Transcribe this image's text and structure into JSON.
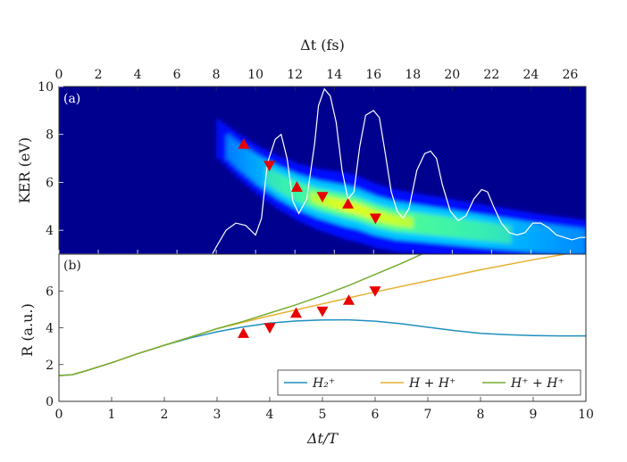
{
  "chart_data": [
    {
      "panel": "(a)",
      "type": "heatmap",
      "top_axis": {
        "label_text": "Δt (fs)",
        "range": [
          0,
          26.8
        ],
        "ticks": [
          "0",
          "2",
          "4",
          "6",
          "8",
          "10",
          "12",
          "14",
          "16",
          "18",
          "20",
          "22",
          "24",
          "26"
        ]
      },
      "y_axis": {
        "label_text": "KER (eV)",
        "range": [
          3,
          10
        ],
        "ticks": [
          "4",
          "6",
          "8",
          "10"
        ]
      },
      "heatmap": {
        "description_key": "ker_yield",
        "band_points": [
          [
            8,
            7.8
          ],
          [
            9,
            7.1
          ],
          [
            10,
            6.5
          ],
          [
            11,
            6.0
          ],
          [
            12,
            5.6
          ],
          [
            13,
            5.3
          ],
          [
            14,
            5.1
          ],
          [
            15,
            4.9
          ],
          [
            16,
            4.6
          ],
          [
            17,
            4.4
          ],
          [
            18,
            4.3
          ],
          [
            20,
            4.1
          ],
          [
            22,
            3.9
          ],
          [
            24,
            3.7
          ],
          [
            26.8,
            3.5
          ]
        ],
        "colormap": [
          "#00008f",
          "#0010ff",
          "#00c8ff",
          "#50ff90",
          "#ffff00"
        ]
      },
      "trace_white": {
        "x": [
          0,
          7.8,
          8,
          8.5,
          9,
          9.5,
          10,
          10.3,
          10.6,
          11,
          11.3,
          11.6,
          11.9,
          12.2,
          12.6,
          13,
          13.2,
          13.5,
          13.8,
          14.1,
          14.4,
          14.7,
          15,
          15.3,
          15.6,
          16,
          16.3,
          16.6,
          16.9,
          17.2,
          17.5,
          17.8,
          18.2,
          18.6,
          18.9,
          19.2,
          19.5,
          19.9,
          20.3,
          20.7,
          21.1,
          21.5,
          21.8,
          22.1,
          22.5,
          22.9,
          23.3,
          23.7,
          24.1,
          24.5,
          24.9,
          25.3,
          25.7,
          26.1,
          26.5,
          26.8
        ],
        "y": [
          3,
          3,
          3.3,
          4.0,
          4.3,
          4.2,
          3.8,
          4.5,
          6.8,
          7.8,
          8.0,
          7.0,
          5.2,
          4.7,
          5.3,
          7.6,
          9.2,
          9.9,
          9.6,
          8.5,
          6.5,
          5.3,
          5.6,
          7.5,
          8.8,
          9.0,
          8.7,
          7.2,
          5.6,
          4.8,
          4.5,
          4.9,
          6.5,
          7.2,
          7.3,
          7.0,
          5.9,
          4.8,
          4.4,
          4.6,
          5.3,
          5.7,
          5.6,
          5.0,
          4.3,
          3.9,
          3.8,
          3.9,
          4.3,
          4.3,
          4.1,
          3.8,
          3.7,
          3.6,
          3.7,
          3.7
        ]
      },
      "markers": [
        {
          "x": 9.4,
          "y": 7.6,
          "shape": "up"
        },
        {
          "x": 10.7,
          "y": 6.7,
          "shape": "down"
        },
        {
          "x": 12.1,
          "y": 5.8,
          "shape": "up"
        },
        {
          "x": 13.4,
          "y": 5.4,
          "shape": "down"
        },
        {
          "x": 14.7,
          "y": 5.1,
          "shape": "up"
        },
        {
          "x": 16.1,
          "y": 4.5,
          "shape": "down"
        }
      ]
    },
    {
      "panel": "(b)",
      "type": "line",
      "x_axis": {
        "label_text": "Δt/T",
        "range": [
          0,
          10
        ],
        "ticks": [
          "0",
          "1",
          "2",
          "3",
          "4",
          "5",
          "6",
          "7",
          "8",
          "9",
          "10"
        ]
      },
      "y_axis": {
        "label_text": "R (a.u.)",
        "range": [
          0,
          8
        ],
        "ticks": [
          "0",
          "2",
          "4",
          "6"
        ]
      },
      "series": [
        {
          "legend": "H₂⁺",
          "color": "#1f8fbf",
          "x": [
            0,
            0.25,
            0.5,
            1,
            1.5,
            2,
            2.5,
            3,
            3.5,
            4,
            4.5,
            5,
            5.5,
            6,
            6.5,
            7,
            7.5,
            8,
            8.5,
            9,
            9.5,
            10
          ],
          "y": [
            1.4,
            1.45,
            1.65,
            2.1,
            2.6,
            3.05,
            3.45,
            3.78,
            4.05,
            4.25,
            4.37,
            4.42,
            4.43,
            4.36,
            4.22,
            4.03,
            3.85,
            3.7,
            3.62,
            3.58,
            3.56,
            3.56
          ]
        },
        {
          "legend": "H + H⁺",
          "color": "#e6b030",
          "x": [
            0,
            0.25,
            0.5,
            1,
            1.5,
            2,
            2.5,
            3,
            3.5,
            4,
            5,
            6,
            7,
            8,
            9,
            10
          ],
          "y": [
            1.4,
            1.45,
            1.65,
            2.1,
            2.6,
            3.05,
            3.5,
            3.95,
            4.3,
            4.65,
            5.3,
            5.95,
            6.55,
            7.15,
            7.7,
            8.2
          ]
        },
        {
          "legend": "H⁺ + H⁺",
          "color": "#77ac30",
          "x": [
            0,
            0.25,
            0.5,
            1,
            1.5,
            2,
            2.5,
            3,
            3.5,
            4,
            4.5,
            5,
            5.5,
            6,
            6.5,
            7,
            7.5,
            7.5
          ],
          "y": [
            1.4,
            1.45,
            1.65,
            2.1,
            2.6,
            3.05,
            3.5,
            3.95,
            4.35,
            4.8,
            5.25,
            5.75,
            6.3,
            6.9,
            7.5,
            8.15,
            8.9,
            8.9
          ]
        }
      ],
      "markers": [
        {
          "x": 3.5,
          "y": 3.7,
          "shape": "up"
        },
        {
          "x": 4.0,
          "y": 4.0,
          "shape": "down"
        },
        {
          "x": 4.5,
          "y": 4.8,
          "shape": "up"
        },
        {
          "x": 5.0,
          "y": 4.9,
          "shape": "down"
        },
        {
          "x": 5.5,
          "y": 5.5,
          "shape": "up"
        },
        {
          "x": 6.0,
          "y": 6.0,
          "shape": "down"
        }
      ],
      "legend_placement": "bottom-right"
    }
  ],
  "colors": {
    "marker": "#e80000",
    "trace": "#ffffff",
    "axis": "#333333"
  }
}
